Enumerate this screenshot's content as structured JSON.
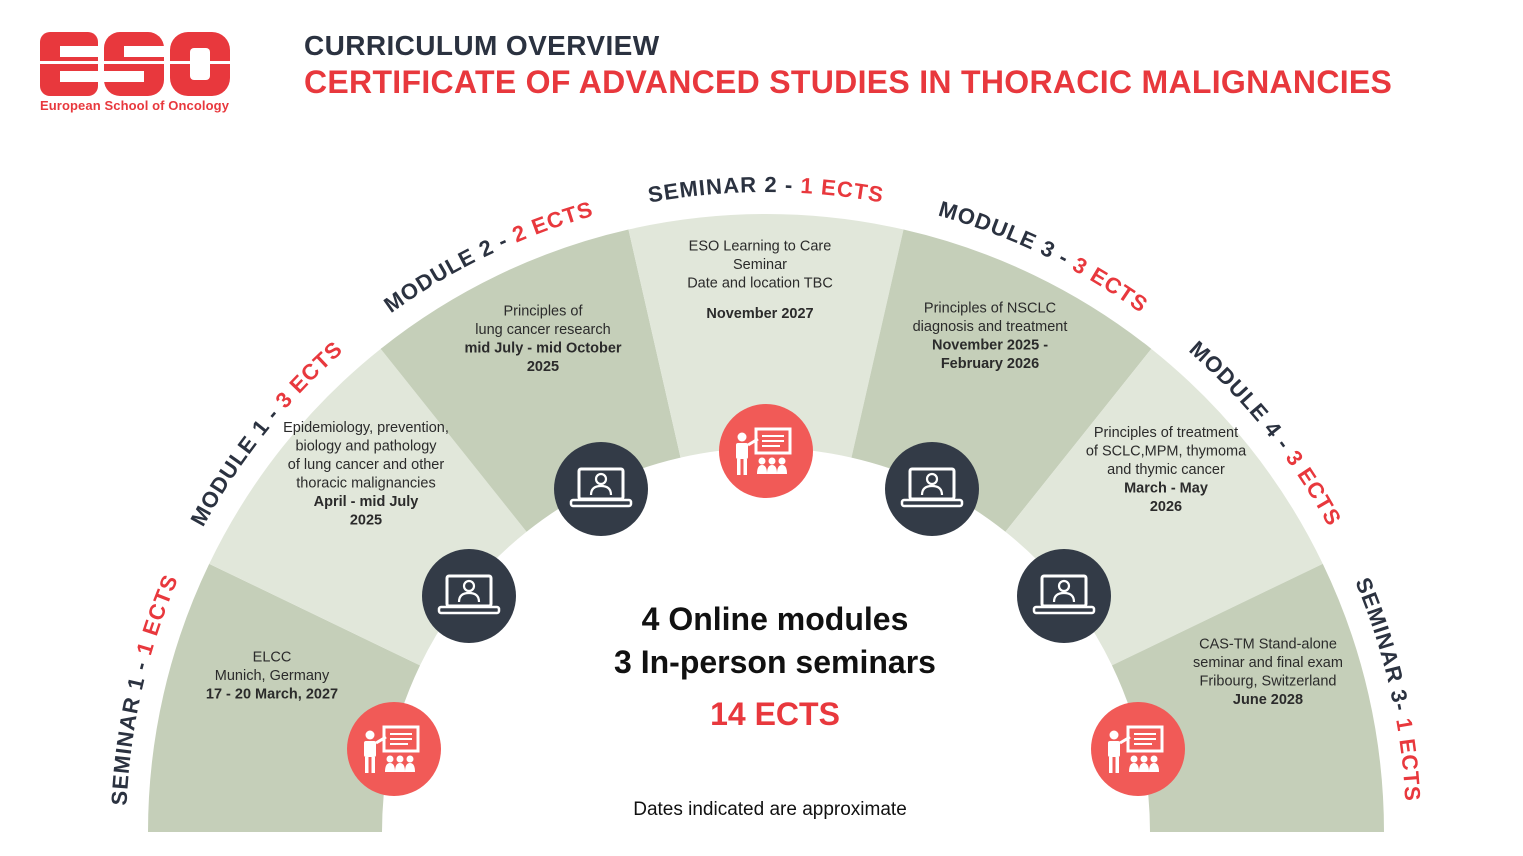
{
  "logo": {
    "wordmark": "ESO",
    "subtitle": "European School of Oncology"
  },
  "header": {
    "kicker": "CURRICULUM OVERVIEW",
    "title": "CERTIFICATE OF ADVANCED STUDIES IN THORACIC MALIGNANCIES"
  },
  "segments": [
    {
      "heading": "SEMINAR 1 - ",
      "ects": "1 ECTS",
      "kind": "seminar",
      "icon": "presentation-icon",
      "lines": [
        "ELCC",
        "Munich, Germany"
      ],
      "date_lines": [
        "17 - 20 March, 2027"
      ]
    },
    {
      "heading": "MODULE 1 - ",
      "ects": "3 ECTS",
      "kind": "module",
      "icon": "laptop-user-icon",
      "lines": [
        "Epidemiology, prevention,",
        "biology and pathology",
        "of lung cancer and other",
        "thoracic malignancies"
      ],
      "date_lines": [
        "April - mid July",
        "2025"
      ]
    },
    {
      "heading": "MODULE 2 - ",
      "ects": "2 ECTS",
      "kind": "module",
      "icon": "laptop-user-icon",
      "lines": [
        "Principles of",
        "lung cancer research"
      ],
      "date_lines": [
        "mid July - mid October",
        "2025"
      ]
    },
    {
      "heading": "SEMINAR 2 - ",
      "ects": "1 ECTS",
      "kind": "seminar",
      "icon": "presentation-icon",
      "lines": [
        "ESO Learning to Care",
        "Seminar",
        "Date and location TBC"
      ],
      "date_lines": [
        "November 2027"
      ]
    },
    {
      "heading": "MODULE 3 - ",
      "ects": "3 ECTS",
      "kind": "module",
      "icon": "laptop-user-icon",
      "lines": [
        "Principles of NSCLC",
        "diagnosis and treatment"
      ],
      "date_lines": [
        "November 2025 -",
        "February 2026"
      ]
    },
    {
      "heading": "MODULE 4 - ",
      "ects": "3 ECTS",
      "kind": "module",
      "icon": "laptop-user-icon",
      "lines": [
        "Principles of treatment",
        "of SCLC,MPM, thymoma",
        "and thymic cancer"
      ],
      "date_lines": [
        "March - May",
        "2026"
      ]
    },
    {
      "heading": "SEMINAR 3- ",
      "ects": "1 ECTS",
      "kind": "seminar",
      "icon": "presentation-icon",
      "lines": [
        "CAS-TM Stand-alone",
        "seminar and final exam",
        "Fribourg, Switzerland"
      ],
      "date_lines": [
        "June 2028"
      ]
    }
  ],
  "center": {
    "modules": "4 Online modules",
    "seminars": "3 In-person seminars",
    "total": "14 ECTS"
  },
  "footnote": "Dates indicated are approximate",
  "colors": {
    "brand_red": "#e8383d",
    "dark": "#2b3240",
    "green_dark": "#c5cfb9",
    "green_light": "#e1e7da",
    "icon_dark": "#333b47",
    "icon_red": "#f15a57"
  }
}
